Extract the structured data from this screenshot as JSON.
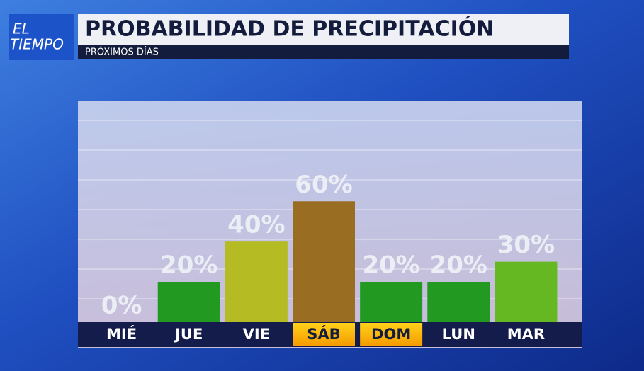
{
  "logo": {
    "line1": "EL",
    "line2": "TIEMPO"
  },
  "chart_data": {
    "type": "bar",
    "title": "PROBABILIDAD DE PRECIPITACIÓN",
    "subtitle": "PRÓXIMOS DÍAS",
    "categories": [
      "MIÉ",
      "JUE",
      "VIE",
      "SÁB",
      "DOM",
      "LUN",
      "MAR"
    ],
    "values": [
      0,
      20,
      40,
      60,
      20,
      20,
      30
    ],
    "value_labels": [
      "0%",
      "20%",
      "40%",
      "60%",
      "20%",
      "20%",
      "30%"
    ],
    "colors": [
      "#229a22",
      "#229a22",
      "#b5bb22",
      "#9a6e22",
      "#229a22",
      "#229a22",
      "#66b822"
    ],
    "label_backgrounds": [
      null,
      null,
      null,
      "#f5b400",
      "#f5b400",
      null,
      null
    ],
    "ylim": [
      0,
      110
    ]
  }
}
